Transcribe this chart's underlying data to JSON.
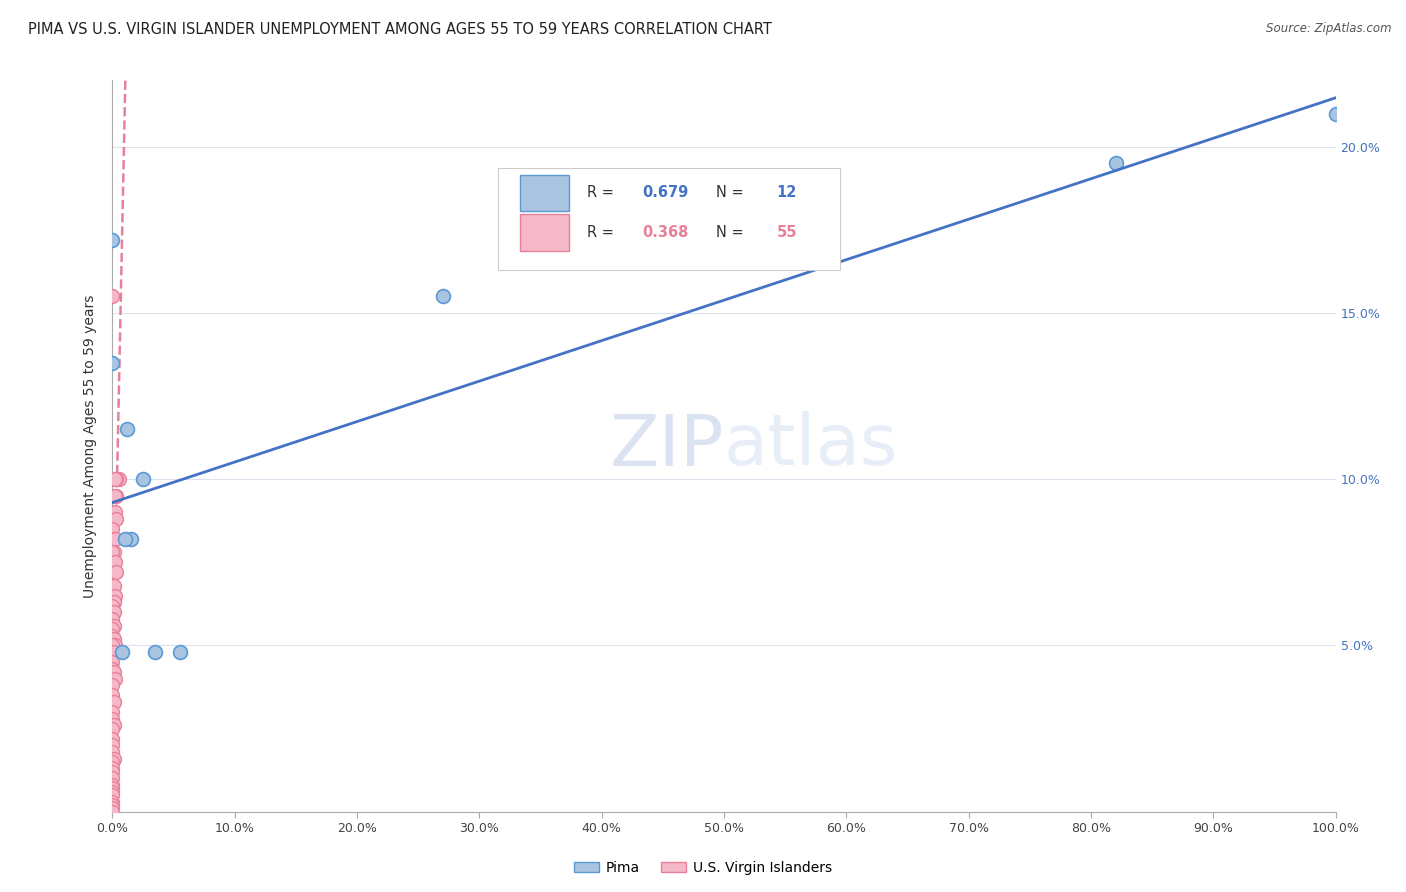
{
  "title": "PIMA VS U.S. VIRGIN ISLANDER UNEMPLOYMENT AMONG AGES 55 TO 59 YEARS CORRELATION CHART",
  "source": "Source: ZipAtlas.com",
  "ylabel": "Unemployment Among Ages 55 to 59 years",
  "xlim": [
    0,
    1.0
  ],
  "ylim": [
    0,
    0.22
  ],
  "xticks": [
    0.0,
    0.1,
    0.2,
    0.3,
    0.4,
    0.5,
    0.6,
    0.7,
    0.8,
    0.9,
    1.0
  ],
  "xticklabels": [
    "0.0%",
    "10.0%",
    "20.0%",
    "30.0%",
    "40.0%",
    "50.0%",
    "60.0%",
    "70.0%",
    "80.0%",
    "90.0%",
    "100.0%"
  ],
  "yticks": [
    0.0,
    0.05,
    0.1,
    0.15,
    0.2
  ],
  "yticklabels_right": [
    "",
    "5.0%",
    "10.0%",
    "15.0%",
    "20.0%"
  ],
  "pima_color": "#a8c4e0",
  "pima_edge_color": "#5b9bd5",
  "vi_color": "#f4b8c8",
  "vi_edge_color": "#e8809a",
  "trendline_pima_color": "#4472c4",
  "trendline_vi_color": "#e8809a",
  "watermark_zip": "ZIP",
  "watermark_atlas": "atlas",
  "R_pima": 0.679,
  "N_pima": 12,
  "R_vi": 0.368,
  "N_vi": 55,
  "pima_points": [
    [
      0.0,
      0.172
    ],
    [
      0.0,
      0.135
    ],
    [
      0.012,
      0.115
    ],
    [
      0.025,
      0.1
    ],
    [
      0.015,
      0.082
    ],
    [
      0.01,
      0.082
    ],
    [
      0.008,
      0.048
    ],
    [
      0.035,
      0.048
    ],
    [
      0.055,
      0.048
    ],
    [
      0.27,
      0.155
    ],
    [
      0.82,
      0.195
    ],
    [
      1.0,
      0.21
    ]
  ],
  "vi_points": [
    [
      0.0,
      0.155
    ],
    [
      0.005,
      0.1
    ],
    [
      0.003,
      0.1
    ],
    [
      0.002,
      0.1
    ],
    [
      0.003,
      0.095
    ],
    [
      0.002,
      0.095
    ],
    [
      0.002,
      0.09
    ],
    [
      0.003,
      0.088
    ],
    [
      0.0,
      0.085
    ],
    [
      0.001,
      0.082
    ],
    [
      0.002,
      0.082
    ],
    [
      0.001,
      0.078
    ],
    [
      0.0,
      0.078
    ],
    [
      0.002,
      0.075
    ],
    [
      0.003,
      0.072
    ],
    [
      0.001,
      0.068
    ],
    [
      0.002,
      0.065
    ],
    [
      0.001,
      0.063
    ],
    [
      0.0,
      0.062
    ],
    [
      0.001,
      0.06
    ],
    [
      0.0,
      0.058
    ],
    [
      0.001,
      0.056
    ],
    [
      0.0,
      0.055
    ],
    [
      0.0,
      0.053
    ],
    [
      0.001,
      0.052
    ],
    [
      0.002,
      0.05
    ],
    [
      0.0,
      0.05
    ],
    [
      0.001,
      0.048
    ],
    [
      0.0,
      0.045
    ],
    [
      0.0,
      0.043
    ],
    [
      0.001,
      0.042
    ],
    [
      0.002,
      0.04
    ],
    [
      0.0,
      0.038
    ],
    [
      0.0,
      0.035
    ],
    [
      0.001,
      0.033
    ],
    [
      0.0,
      0.03
    ],
    [
      0.0,
      0.028
    ],
    [
      0.001,
      0.026
    ],
    [
      0.0,
      0.025
    ],
    [
      0.0,
      0.022
    ],
    [
      0.0,
      0.02
    ],
    [
      0.0,
      0.018
    ],
    [
      0.001,
      0.016
    ],
    [
      0.0,
      0.015
    ],
    [
      0.0,
      0.013
    ],
    [
      0.0,
      0.012
    ],
    [
      0.0,
      0.01
    ],
    [
      0.0,
      0.008
    ],
    [
      0.0,
      0.007
    ],
    [
      0.0,
      0.006
    ],
    [
      0.0,
      0.005
    ],
    [
      0.0,
      0.003
    ],
    [
      0.0,
      0.002
    ],
    [
      0.0,
      0.001
    ],
    [
      0.0,
      0.0
    ]
  ],
  "background_color": "#ffffff",
  "grid_color": "#dde3ee",
  "title_fontsize": 10.5,
  "axis_label_fontsize": 10,
  "tick_fontsize": 9,
  "right_ytick_color": "#4472c4",
  "marker_size": 100
}
